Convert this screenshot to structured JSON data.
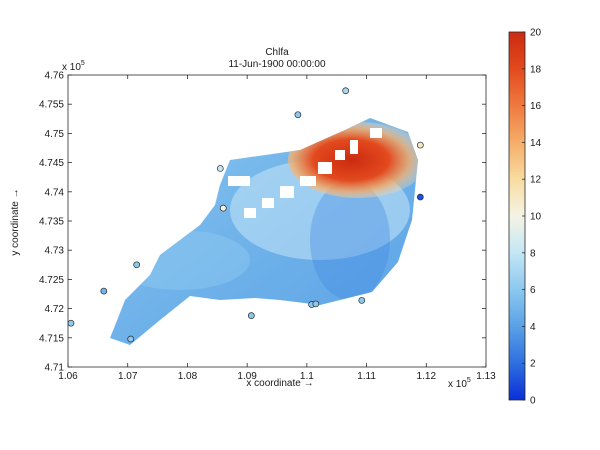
{
  "chart_data": {
    "type": "heatmap",
    "title": "Chlfa",
    "subtitle": "11-Jun-1900 00:00:00",
    "xlabel": "x coordinate →",
    "ylabel": "y coordinate →",
    "x_exponent": "x 10",
    "x_exponent_power": "5",
    "y_exponent": "x 10",
    "y_exponent_power": "5",
    "xlim": [
      1.06,
      1.13
    ],
    "ylim": [
      4.71,
      4.76
    ],
    "xticks": [
      "1.06",
      "1.07",
      "1.08",
      "1.09",
      "1.1",
      "1.11",
      "1.12",
      "1.13"
    ],
    "yticks": [
      "4.71",
      "4.715",
      "4.72",
      "4.725",
      "4.73",
      "4.735",
      "4.74",
      "4.745",
      "4.75",
      "4.755",
      "4.76"
    ],
    "colorbar": {
      "min": 0,
      "max": 20,
      "ticks": [
        "0",
        "2",
        "4",
        "6",
        "8",
        "10",
        "12",
        "14",
        "16",
        "18",
        "20"
      ],
      "colors": [
        "#0a2fd6",
        "#2f6fe0",
        "#5aa1e6",
        "#8cc8ef",
        "#c4e6f5",
        "#f4f4e4",
        "#f8dca0",
        "#f5ad6a",
        "#ef7a3e",
        "#e24a1e",
        "#cc2a10"
      ]
    },
    "grid": false,
    "observation_stations": [
      {
        "x": 1.0605,
        "y": 4.7175,
        "value": 6
      },
      {
        "x": 1.066,
        "y": 4.723,
        "value": 5
      },
      {
        "x": 1.0705,
        "y": 4.7148,
        "value": 6
      },
      {
        "x": 1.0715,
        "y": 4.7275,
        "value": 6
      },
      {
        "x": 1.0855,
        "y": 4.744,
        "value": 8
      },
      {
        "x": 1.086,
        "y": 4.7372,
        "value": 10
      },
      {
        "x": 1.0907,
        "y": 4.7188,
        "value": 6
      },
      {
        "x": 1.0985,
        "y": 4.7532,
        "value": 6
      },
      {
        "x": 1.1008,
        "y": 4.7207,
        "value": 6
      },
      {
        "x": 1.1015,
        "y": 4.7208,
        "value": 6
      },
      {
        "x": 1.1065,
        "y": 4.7573,
        "value": 7
      },
      {
        "x": 1.1092,
        "y": 4.7214,
        "value": 6
      },
      {
        "x": 1.119,
        "y": 4.748,
        "value": 11
      },
      {
        "x": 1.119,
        "y": 4.7391,
        "value": 1
      }
    ]
  }
}
